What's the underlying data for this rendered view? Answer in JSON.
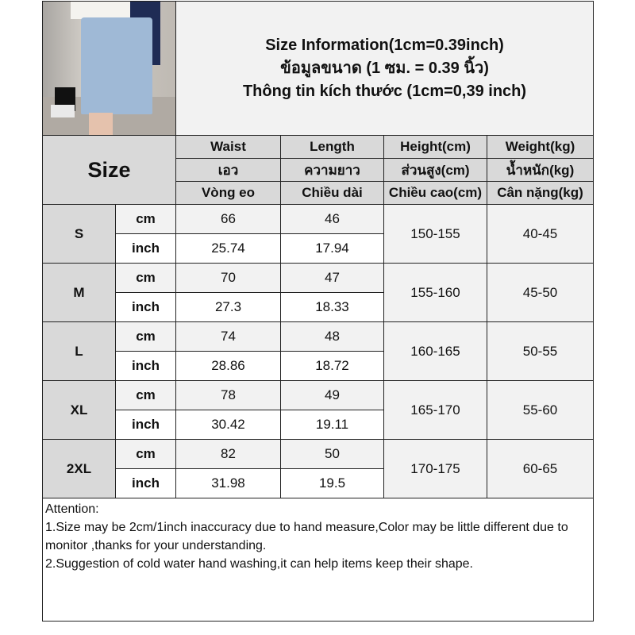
{
  "title": {
    "line1": "Size Information(1cm=0.39inch)",
    "line2": "ข้อมูลขนาด (1 ซม. = 0.39 นิ้ว)",
    "line3": "Thông tin kích thước (1cm=0,39 inch)"
  },
  "size_label": "Size",
  "headers": [
    [
      "Waist",
      "Length",
      "Height(cm)",
      "Weight(kg)"
    ],
    [
      "เอว",
      "ความยาว",
      "ส่วนสูง(cm)",
      "น้ำหนัก(kg)"
    ],
    [
      "Vòng eo",
      "Chiều dài",
      "Chiều cao(cm)",
      "Cân nặng(kg)"
    ]
  ],
  "units": {
    "cm": "cm",
    "inch": "inch"
  },
  "rows": [
    {
      "size": "S",
      "waist_cm": "66",
      "length_cm": "46",
      "waist_in": "25.74",
      "length_in": "17.94",
      "height": "150-155",
      "weight": "40-45"
    },
    {
      "size": "M",
      "waist_cm": "70",
      "length_cm": "47",
      "waist_in": "27.3",
      "length_in": "18.33",
      "height": "155-160",
      "weight": "45-50"
    },
    {
      "size": "L",
      "waist_cm": "74",
      "length_cm": "48",
      "waist_in": "28.86",
      "length_in": "18.72",
      "height": "160-165",
      "weight": "50-55"
    },
    {
      "size": "XL",
      "waist_cm": "78",
      "length_cm": "49",
      "waist_in": "30.42",
      "length_in": "19.11",
      "height": "165-170",
      "weight": "55-60"
    },
    {
      "size": "2XL",
      "waist_cm": "82",
      "length_cm": "50",
      "waist_in": "31.98",
      "length_in": "19.5",
      "height": "170-175",
      "weight": "60-65"
    }
  ],
  "notes": {
    "heading": "Attention:",
    "line1": "1.Size may be 2cm/1inch inaccuracy due to hand measure,Color may be little different due to monitor ,thanks for your understanding.",
    "line2": "2.Suggestion of cold water hand washing,it can help items keep their shape."
  },
  "colors": {
    "header_gray": "#d9d9d9",
    "light_gray": "#f2f2f2",
    "border": "#222222"
  }
}
